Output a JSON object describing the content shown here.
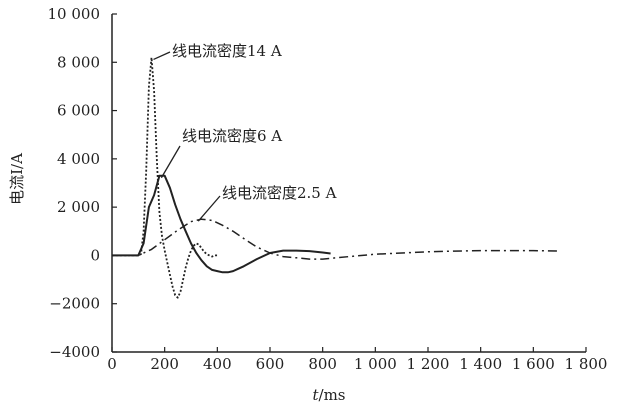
{
  "chart_data": {
    "type": "line",
    "title": "",
    "xlabel": "t/ms",
    "xlabel_var": "t",
    "xlabel_unit": "/ms",
    "ylabel": "电流I/A",
    "xlim": [
      0,
      1800
    ],
    "ylim": [
      -4000,
      10000
    ],
    "x_ticks": [
      0,
      200,
      400,
      600,
      800,
      1000,
      1200,
      1400,
      1600,
      1800
    ],
    "x_tick_labels": [
      "0",
      "200",
      "400",
      "600",
      "800",
      "1 000",
      "1 200",
      "1 400",
      "1 600",
      "1 800"
    ],
    "y_ticks": [
      -4000,
      -2000,
      0,
      2000,
      4000,
      6000,
      8000,
      10000
    ],
    "y_tick_labels": [
      "−4000",
      "−2000",
      "0",
      "2 000",
      "4 000",
      "6 000",
      "8 000",
      "10 000"
    ],
    "grid": false,
    "legend": "none",
    "series": [
      {
        "name": "线电流密度14 A",
        "style": "dotted",
        "x": [
          0,
          100,
          110,
          120,
          130,
          140,
          150,
          160,
          170,
          180,
          190,
          200,
          210,
          220,
          230,
          240,
          250,
          260,
          270,
          280,
          290,
          300,
          310,
          320,
          330,
          340,
          350,
          360,
          370,
          380,
          390,
          400
        ],
        "y": [
          0,
          0,
          50,
          1000,
          3500,
          7000,
          8200,
          6800,
          4000,
          1800,
          800,
          200,
          -300,
          -800,
          -1300,
          -1650,
          -1750,
          -1500,
          -1000,
          -500,
          -100,
          200,
          400,
          500,
          450,
          300,
          150,
          50,
          0,
          -50,
          0,
          0
        ]
      },
      {
        "name": "线电流密度6 A",
        "style": "solid",
        "x": [
          0,
          100,
          120,
          140,
          160,
          180,
          200,
          220,
          240,
          260,
          280,
          300,
          320,
          340,
          360,
          380,
          400,
          420,
          440,
          460,
          480,
          500,
          550,
          600,
          650,
          700,
          750,
          800,
          830
        ],
        "y": [
          0,
          0,
          500,
          2000,
          2500,
          3300,
          3300,
          2800,
          2100,
          1500,
          1000,
          500,
          100,
          -200,
          -450,
          -600,
          -650,
          -700,
          -700,
          -650,
          -550,
          -450,
          -150,
          100,
          200,
          200,
          180,
          120,
          80
        ]
      },
      {
        "name": "线电流密度2.5 A",
        "style": "dashdot",
        "x": [
          0,
          100,
          150,
          200,
          250,
          300,
          340,
          380,
          420,
          460,
          500,
          550,
          600,
          650,
          700,
          750,
          800,
          900,
          1000,
          1100,
          1200,
          1300,
          1400,
          1500,
          1600,
          1700
        ],
        "y": [
          0,
          0,
          250,
          650,
          1050,
          1400,
          1500,
          1450,
          1250,
          1000,
          700,
          350,
          100,
          -50,
          -100,
          -150,
          -150,
          -50,
          50,
          100,
          150,
          180,
          200,
          200,
          200,
          180
        ]
      }
    ],
    "annotations": [
      {
        "text": "线电流密度14 A",
        "series": 0,
        "target": [
          150,
          8200
        ]
      },
      {
        "text": "线电流密度6 A",
        "series": 1,
        "target": [
          180,
          3300
        ]
      },
      {
        "text": "线电流密度2.5 A",
        "series": 2,
        "target": [
          320,
          1500
        ]
      }
    ]
  }
}
